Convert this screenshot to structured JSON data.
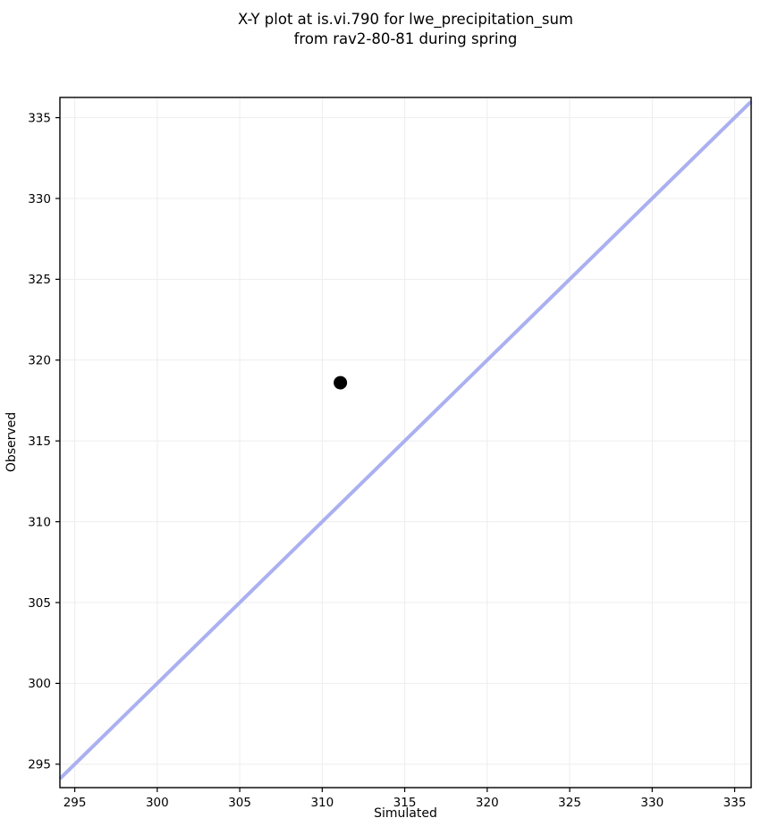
{
  "chart_data": {
    "type": "scatter",
    "title": "X-Y plot at is.vi.790 for lwe_precipitation_sum\nfrom rav2-80-81 during spring",
    "title_lines": [
      "X-Y plot at is.vi.790 for lwe_precipitation_sum",
      "from rav2-80-81 during spring"
    ],
    "xlabel": "Simulated",
    "ylabel": "Observed",
    "xlim": [
      294.1,
      336.0
    ],
    "ylim": [
      293.55,
      336.25
    ],
    "xticks": [
      295,
      300,
      305,
      310,
      315,
      320,
      325,
      330,
      335
    ],
    "yticks": [
      295,
      300,
      305,
      310,
      315,
      320,
      325,
      330,
      335
    ],
    "grid": true,
    "legend": "none",
    "series": [
      {
        "name": "observed-vs-simulated-point",
        "type": "scatter",
        "x": [
          311.1
        ],
        "y": [
          318.6
        ],
        "color": "#000000",
        "marker": "circle",
        "marker_radius": 7.5
      }
    ],
    "identity_line": {
      "equation": "y = x",
      "x": [
        294.1,
        336.0
      ],
      "y": [
        294.1,
        336.0
      ],
      "color": "#aab0f0",
      "stroke_width": 4
    },
    "colors": {
      "background": "#ffffff",
      "grid": "#ededed",
      "spine": "#000000",
      "tick": "#000000",
      "text": "#000000"
    }
  }
}
